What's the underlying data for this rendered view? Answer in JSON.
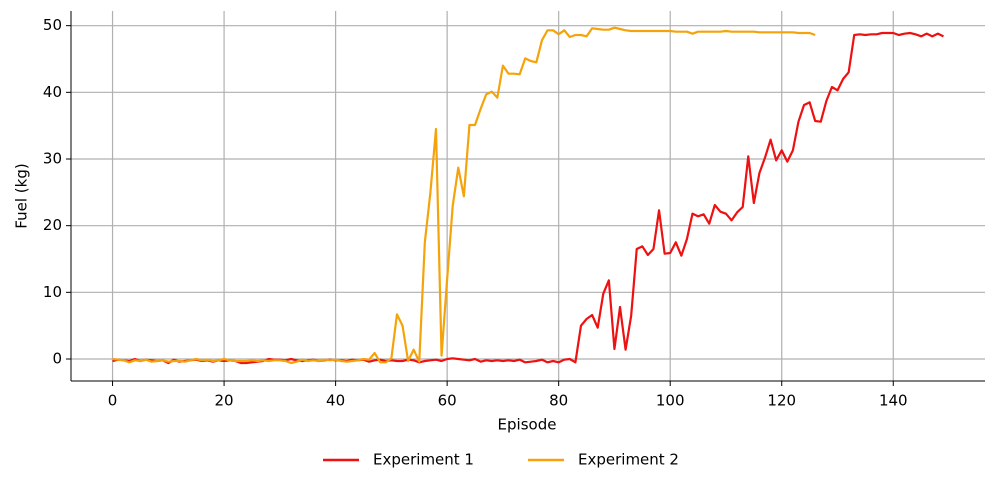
{
  "chart_data": {
    "type": "line",
    "xlabel": "Episode",
    "ylabel": "Fuel (kg)",
    "xlim": [
      -7.45,
      156.45
    ],
    "ylim": [
      -3.3,
      52.2
    ],
    "xticks": [
      0,
      20,
      40,
      60,
      80,
      100,
      120,
      140
    ],
    "yticks": [
      0,
      10,
      20,
      30,
      40,
      50
    ],
    "grid": true,
    "legend": "bottom",
    "series": [
      {
        "name": "Experiment 1",
        "color": "#ee1111",
        "x": [
          0,
          1,
          2,
          3,
          4,
          5,
          6,
          7,
          8,
          9,
          10,
          11,
          12,
          13,
          14,
          15,
          16,
          17,
          18,
          19,
          20,
          21,
          22,
          23,
          24,
          25,
          26,
          27,
          28,
          29,
          30,
          31,
          32,
          33,
          34,
          35,
          36,
          37,
          38,
          39,
          40,
          41,
          42,
          43,
          44,
          45,
          46,
          47,
          48,
          49,
          50,
          51,
          52,
          53,
          54,
          55,
          56,
          57,
          58,
          59,
          60,
          61,
          62,
          63,
          64,
          65,
          66,
          67,
          68,
          69,
          70,
          71,
          72,
          73,
          74,
          75,
          76,
          77,
          78,
          79,
          80,
          81,
          82,
          83,
          84,
          85,
          86,
          87,
          88,
          89,
          90,
          91,
          92,
          93,
          94,
          95,
          96,
          97,
          98,
          99,
          100,
          101,
          102,
          103,
          104,
          105,
          106,
          107,
          108,
          109,
          110,
          111,
          112,
          113,
          114,
          115,
          116,
          117,
          118,
          119,
          120,
          121,
          122,
          123,
          124,
          125,
          126,
          127,
          128,
          129,
          130,
          131,
          132,
          133,
          134,
          135,
          136,
          137,
          138,
          139,
          140,
          141,
          142,
          143,
          144,
          145,
          146,
          147,
          148,
          149
        ],
        "values": [
          -0.3,
          -0.1,
          -0.2,
          -0.3,
          0,
          -0.3,
          -0.1,
          -0.2,
          -0.3,
          -0.2,
          -0.6,
          -0.1,
          -0.4,
          -0.3,
          -0.2,
          -0.1,
          -0.3,
          -0.2,
          -0.4,
          -0.2,
          -0.3,
          -0.2,
          -0.3,
          -0.6,
          -0.6,
          -0.5,
          -0.4,
          -0.3,
          0,
          -0.1,
          -0.1,
          -0.2,
          0,
          -0.2,
          -0.3,
          -0.2,
          -0.1,
          -0.3,
          -0.2,
          -0.1,
          -0.2,
          -0.2,
          -0.3,
          -0.1,
          -0.2,
          -0.1,
          -0.4,
          -0.2,
          -0.1,
          -0.3,
          -0.2,
          -0.3,
          -0.3,
          -0.1,
          -0.2,
          -0.5,
          -0.3,
          -0.2,
          -0.1,
          -0.3,
          0,
          0.1,
          0,
          -0.1,
          -0.2,
          0,
          -0.4,
          -0.2,
          -0.3,
          -0.2,
          -0.3,
          -0.2,
          -0.3,
          -0.1,
          -0.5,
          -0.4,
          -0.3,
          -0.1,
          -0.5,
          -0.3,
          -0.5,
          -0.1,
          0,
          -0.5,
          5,
          6,
          6.6,
          4.7,
          9.8,
          11.8,
          1.5,
          7.8,
          1.4,
          6.5,
          16.5,
          16.9,
          15.6,
          16.5,
          22.3,
          15.8,
          15.9,
          17.5,
          15.5,
          18,
          21.8,
          21.4,
          21.7,
          20.3,
          23.1,
          22.1,
          21.8,
          20.8,
          22,
          22.8,
          30.4,
          23.4,
          27.9,
          30.2,
          32.9,
          29.8,
          31.3,
          29.6,
          31.3,
          35.6,
          38.1,
          38.5,
          35.7,
          35.6,
          38.7,
          40.8,
          40.3,
          42,
          43,
          48.6,
          48.7,
          48.6,
          48.7,
          48.7,
          48.9,
          48.9,
          48.9,
          48.6,
          48.8,
          48.9,
          48.7,
          48.4,
          48.8,
          48.4,
          48.8,
          48.4
        ]
      },
      {
        "name": "Experiment 2",
        "color": "#f5a30a",
        "x": [
          0,
          1,
          2,
          3,
          4,
          5,
          6,
          7,
          8,
          9,
          10,
          11,
          12,
          13,
          14,
          15,
          16,
          17,
          18,
          19,
          20,
          21,
          22,
          23,
          24,
          25,
          26,
          27,
          28,
          29,
          30,
          31,
          32,
          33,
          34,
          35,
          36,
          37,
          38,
          39,
          40,
          41,
          42,
          43,
          44,
          45,
          46,
          47,
          48,
          49,
          50,
          51,
          52,
          53,
          54,
          55,
          56,
          57,
          58,
          59,
          60,
          61,
          62,
          63,
          64,
          65,
          66,
          67,
          68,
          69,
          70,
          71,
          72,
          73,
          74,
          75,
          76,
          77,
          78,
          79,
          80,
          81,
          82,
          83,
          84,
          85,
          86,
          87,
          88,
          89,
          90,
          91,
          92,
          93,
          94,
          95,
          96,
          97,
          98,
          99,
          100,
          101,
          102,
          103,
          104,
          105,
          106,
          107,
          108,
          109,
          110,
          111,
          112,
          113,
          114,
          115,
          116,
          117,
          118,
          119,
          120,
          121,
          122,
          123,
          124,
          125,
          126
        ],
        "values": [
          0,
          -0.1,
          -0.2,
          -0.5,
          -0.2,
          -0.3,
          -0.1,
          -0.4,
          -0.3,
          -0.2,
          -0.4,
          -0.3,
          -0.3,
          -0.4,
          -0.2,
          0,
          -0.2,
          -0.1,
          -0.3,
          -0.2,
          0,
          -0.2,
          -0.3,
          -0.3,
          -0.3,
          -0.2,
          -0.3,
          -0.2,
          -0.3,
          -0.2,
          -0.2,
          -0.3,
          -0.6,
          -0.4,
          -0.1,
          -0.3,
          -0.2,
          -0.3,
          -0.1,
          -0.2,
          -0.1,
          -0.3,
          -0.4,
          -0.3,
          -0.2,
          0,
          -0.1,
          0.9,
          -0.5,
          -0.5,
          0.1,
          6.7,
          5,
          -0.3,
          1.4,
          -0.4,
          17.5,
          25,
          34.5,
          0.5,
          12,
          23,
          28.7,
          24.4,
          35.1,
          35.1,
          37.5,
          39.7,
          40.1,
          39.2,
          44,
          42.8,
          42.8,
          42.7,
          45.1,
          44.7,
          44.5,
          47.8,
          49.3,
          49.3,
          48.7,
          49.3,
          48.3,
          48.6,
          48.6,
          48.4,
          49.6,
          49.5,
          49.4,
          49.4,
          49.7,
          49.5,
          49.3,
          49.2,
          49.2,
          49.2,
          49.2,
          49.2,
          49.2,
          49.2,
          49.2,
          49.1,
          49.1,
          49.1,
          48.8,
          49.1,
          49.1,
          49.1,
          49.1,
          49.1,
          49.2,
          49.1,
          49.1,
          49.1,
          49.1,
          49.1,
          49,
          49,
          49,
          49,
          49,
          49,
          49,
          48.9,
          48.9,
          48.9,
          48.6
        ]
      }
    ]
  }
}
